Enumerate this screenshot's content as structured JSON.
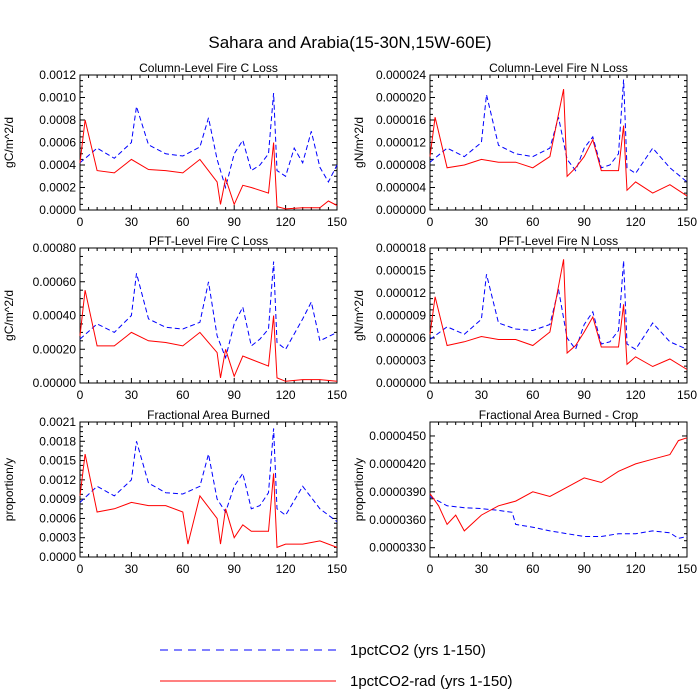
{
  "figure": {
    "title": "Sahara and Arabia(15-30N,15W-60E)",
    "legend": [
      {
        "label": "1pctCO2 (yrs 1-150)",
        "color": "#0000ff",
        "dash": "dashed"
      },
      {
        "label": "1pctCO2-rad (yrs 1-150)",
        "color": "#ff0000",
        "dash": "solid"
      }
    ]
  },
  "chart_data": [
    {
      "type": "line",
      "title": "Column-Level Fire C Loss",
      "xlabel": "",
      "ylabel": "gC/m^2/d",
      "xlim": [
        0,
        150
      ],
      "ylim": [
        0,
        0.0012
      ],
      "xticks": [
        0,
        30,
        60,
        90,
        120,
        150
      ],
      "yticks": [
        "0.0000",
        "0.0002",
        "0.0004",
        "0.0006",
        "0.0008",
        "0.0010",
        "0.0012"
      ],
      "series": [
        {
          "name": "1pctCO2 (yrs 1-150)",
          "x": [
            0,
            10,
            20,
            30,
            33,
            40,
            50,
            60,
            70,
            75,
            80,
            85,
            90,
            95,
            100,
            105,
            110,
            113,
            115,
            120,
            125,
            130,
            135,
            140,
            145,
            150
          ],
          "values": [
            0.00042,
            0.00055,
            0.00046,
            0.0006,
            0.00092,
            0.00058,
            0.0005,
            0.00048,
            0.00056,
            0.00082,
            0.00045,
            0.0002,
            0.0005,
            0.00062,
            0.00035,
            0.0004,
            0.0005,
            0.00104,
            0.00035,
            0.0003,
            0.00055,
            0.00042,
            0.0007,
            0.00038,
            0.00025,
            0.0004
          ]
        },
        {
          "name": "1pctCO2-rad (yrs 1-150)",
          "x": [
            0,
            3,
            10,
            20,
            30,
            40,
            50,
            60,
            70,
            80,
            82,
            85,
            90,
            95,
            100,
            110,
            113,
            115,
            120,
            130,
            140,
            145,
            150
          ],
          "values": [
            0.00042,
            0.0008,
            0.00035,
            0.00033,
            0.00045,
            0.00036,
            0.00035,
            0.00033,
            0.00045,
            0.00025,
            5e-05,
            0.00028,
            5e-05,
            0.00022,
            0.0002,
            0.00015,
            0.0006,
            3e-05,
            1e-05,
            2e-05,
            2e-05,
            8e-05,
            4e-05
          ]
        }
      ]
    },
    {
      "type": "line",
      "title": "Column-Level Fire N Loss",
      "xlabel": "",
      "ylabel": "gN/m^2/d",
      "xlim": [
        0,
        150
      ],
      "ylim": [
        0,
        2.4e-05
      ],
      "xticks": [
        0,
        30,
        60,
        90,
        120,
        150
      ],
      "yticks": [
        "0.000000",
        "0.000004",
        "0.000008",
        "0.000012",
        "0.000016",
        "0.000020",
        "0.000024"
      ],
      "series": [
        {
          "name": "1pctCO2 (yrs 1-150)",
          "x": [
            0,
            10,
            20,
            30,
            33,
            40,
            50,
            60,
            70,
            75,
            80,
            85,
            90,
            95,
            100,
            105,
            110,
            113,
            115,
            120,
            130,
            140,
            150
          ],
          "values": [
            8.5e-06,
            1.1e-05,
            9.5e-06,
            1.2e-05,
            2.05e-05,
            1.15e-05,
            1e-05,
            9.5e-06,
            1.1e-05,
            1.65e-05,
            9e-06,
            7e-06,
            1.1e-05,
            1.3e-05,
            7.5e-06,
            8e-06,
            1e-05,
            2.32e-05,
            7.5e-06,
            6.5e-06,
            1.1e-05,
            7.5e-06,
            5e-06
          ]
        },
        {
          "name": "1pctCO2-rad (yrs 1-150)",
          "x": [
            0,
            3,
            10,
            20,
            30,
            40,
            50,
            60,
            70,
            78,
            80,
            85,
            90,
            95,
            100,
            110,
            113,
            115,
            120,
            130,
            140,
            150
          ],
          "values": [
            9.5e-06,
            1.65e-05,
            7.5e-06,
            8e-06,
            9e-06,
            8.5e-06,
            8.5e-06,
            7.5e-06,
            9.5e-06,
            2.15e-05,
            6e-06,
            7.5e-06,
            9.5e-06,
            1.25e-05,
            7e-06,
            7e-06,
            1.5e-05,
            3.5e-06,
            5e-06,
            3e-06,
            4.5e-06,
            2.5e-06
          ]
        }
      ]
    },
    {
      "type": "line",
      "title": "PFT-Level Fire C Loss",
      "xlabel": "",
      "ylabel": "gC/m^2/d",
      "xlim": [
        0,
        150
      ],
      "ylim": [
        0,
        0.0008
      ],
      "xticks": [
        0,
        30,
        60,
        90,
        120,
        150
      ],
      "yticks": [
        "0.00000",
        "0.00020",
        "0.00040",
        "0.00060",
        "0.00080"
      ],
      "series": [
        {
          "name": "1pctCO2 (yrs 1-150)",
          "x": [
            0,
            10,
            20,
            30,
            33,
            40,
            50,
            60,
            70,
            75,
            80,
            85,
            90,
            95,
            100,
            105,
            110,
            113,
            115,
            120,
            130,
            135,
            140,
            150
          ],
          "values": [
            0.00026,
            0.00035,
            0.0003,
            0.0004,
            0.00065,
            0.00038,
            0.00033,
            0.00032,
            0.00036,
            0.0006,
            0.00028,
            0.00015,
            0.00035,
            0.00045,
            0.00022,
            0.00026,
            0.00032,
            0.00072,
            0.00024,
            0.0002,
            0.00038,
            0.00048,
            0.00025,
            0.0003
          ]
        },
        {
          "name": "1pctCO2-rad (yrs 1-150)",
          "x": [
            0,
            3,
            10,
            20,
            30,
            40,
            50,
            60,
            70,
            80,
            82,
            85,
            90,
            95,
            100,
            110,
            113,
            115,
            120,
            130,
            140,
            150
          ],
          "values": [
            0.00028,
            0.00055,
            0.00022,
            0.00022,
            0.0003,
            0.00025,
            0.00024,
            0.00022,
            0.0003,
            0.00018,
            3e-05,
            0.0002,
            4e-05,
            0.00016,
            0.00014,
            0.0001,
            0.0004,
            3e-05,
            1e-05,
            2e-05,
            2e-05,
            1e-05
          ]
        }
      ]
    },
    {
      "type": "line",
      "title": "PFT-Level Fire N Loss",
      "xlabel": "",
      "ylabel": "gN/m^2/d",
      "xlim": [
        0,
        150
      ],
      "ylim": [
        0,
        1.8e-05
      ],
      "xticks": [
        0,
        30,
        60,
        90,
        120,
        150
      ],
      "yticks": [
        "0.000000",
        "0.000003",
        "0.000006",
        "0.000009",
        "0.000012",
        "0.000015",
        "0.000018"
      ],
      "series": [
        {
          "name": "1pctCO2 (yrs 1-150)",
          "x": [
            0,
            10,
            20,
            30,
            33,
            40,
            50,
            60,
            70,
            75,
            80,
            85,
            90,
            95,
            100,
            105,
            110,
            113,
            115,
            120,
            130,
            140,
            150
          ],
          "values": [
            5.8e-06,
            7.5e-06,
            6.5e-06,
            8.5e-06,
            1.45e-05,
            8e-06,
            7.2e-06,
            7e-06,
            7.8e-06,
            1.25e-05,
            6e-06,
            4.5e-06,
            7.8e-06,
            9.5e-06,
            5.2e-06,
            5.5e-06,
            7e-06,
            1.63e-05,
            5.2e-06,
            4.5e-06,
            8e-06,
            5.5e-06,
            4.5e-06
          ]
        },
        {
          "name": "1pctCO2-rad (yrs 1-150)",
          "x": [
            0,
            3,
            10,
            20,
            30,
            40,
            50,
            60,
            70,
            78,
            80,
            85,
            90,
            95,
            100,
            110,
            113,
            115,
            120,
            130,
            140,
            150
          ],
          "values": [
            6.5e-06,
            1.15e-05,
            5e-06,
            5.5e-06,
            6.2e-06,
            5.8e-06,
            5.8e-06,
            5e-06,
            6.8e-06,
            1.65e-05,
            4e-06,
            5e-06,
            6.8e-06,
            8.8e-06,
            4.8e-06,
            4.8e-06,
            1.05e-05,
            2.5e-06,
            3.5e-06,
            2.2e-06,
            3.2e-06,
            1.8e-06
          ]
        }
      ]
    },
    {
      "type": "line",
      "title": "Fractional Area Burned",
      "xlabel": "",
      "ylabel": "proportion/y",
      "xlim": [
        0,
        150
      ],
      "ylim": [
        0,
        0.0021
      ],
      "xticks": [
        0,
        30,
        60,
        90,
        120,
        150
      ],
      "yticks": [
        "0.0000",
        "0.0003",
        "0.0006",
        "0.0009",
        "0.0012",
        "0.0015",
        "0.0018",
        "0.0021"
      ],
      "series": [
        {
          "name": "1pctCO2 (yrs 1-150)",
          "x": [
            0,
            10,
            20,
            30,
            33,
            40,
            50,
            60,
            70,
            75,
            80,
            85,
            90,
            95,
            100,
            105,
            110,
            113,
            115,
            120,
            130,
            140,
            150
          ],
          "values": [
            0.00085,
            0.0011,
            0.00095,
            0.0012,
            0.0018,
            0.00115,
            0.001,
            0.00098,
            0.0011,
            0.0016,
            0.0009,
            0.0007,
            0.0011,
            0.0013,
            0.00075,
            0.0008,
            0.001,
            0.002,
            0.00075,
            0.00065,
            0.0011,
            0.00075,
            0.00055
          ]
        },
        {
          "name": "1pctCO2-rad (yrs 1-150)",
          "x": [
            0,
            3,
            10,
            20,
            30,
            40,
            50,
            60,
            63,
            70,
            80,
            82,
            85,
            90,
            95,
            100,
            110,
            113,
            115,
            120,
            130,
            140,
            150
          ],
          "values": [
            0.00095,
            0.0016,
            0.0007,
            0.00075,
            0.00085,
            0.0008,
            0.0008,
            0.0007,
            0.0002,
            0.00095,
            0.0006,
            0.0002,
            0.00075,
            0.0003,
            0.0005,
            0.0004,
            0.0004,
            0.0013,
            0.00015,
            0.0002,
            0.0002,
            0.00025,
            0.00015
          ]
        }
      ]
    },
    {
      "type": "line",
      "title": "Fractional Area Burned - Crop",
      "xlabel": "",
      "ylabel": "proportion/y",
      "xlim": [
        0,
        150
      ],
      "ylim": [
        3.2e-05,
        4.65e-05
      ],
      "xticks": [
        0,
        30,
        60,
        90,
        120,
        150
      ],
      "yticks": [
        "0.0000330",
        "0.0000360",
        "0.0000390",
        "0.0000420",
        "0.0000450"
      ],
      "series": [
        {
          "name": "1pctCO2 (yrs 1-150)",
          "x": [
            0,
            10,
            20,
            30,
            40,
            48,
            50,
            60,
            70,
            80,
            90,
            100,
            110,
            120,
            130,
            140,
            145,
            150
          ],
          "values": [
            3.85e-05,
            3.75e-05,
            3.73e-05,
            3.72e-05,
            3.7e-05,
            3.68e-05,
            3.55e-05,
            3.52e-05,
            3.48e-05,
            3.45e-05,
            3.42e-05,
            3.42e-05,
            3.45e-05,
            3.45e-05,
            3.48e-05,
            3.46e-05,
            3.4e-05,
            3.42e-05
          ]
        },
        {
          "name": "1pctCO2-rad (yrs 1-150)",
          "x": [
            0,
            5,
            10,
            15,
            20,
            30,
            40,
            50,
            60,
            70,
            80,
            90,
            100,
            110,
            120,
            130,
            140,
            145,
            150
          ],
          "values": [
            3.88e-05,
            3.75e-05,
            3.55e-05,
            3.65e-05,
            3.48e-05,
            3.65e-05,
            3.75e-05,
            3.8e-05,
            3.9e-05,
            3.85e-05,
            3.95e-05,
            4.05e-05,
            4e-05,
            4.12e-05,
            4.2e-05,
            4.25e-05,
            4.3e-05,
            4.45e-05,
            4.48e-05
          ]
        }
      ]
    }
  ]
}
